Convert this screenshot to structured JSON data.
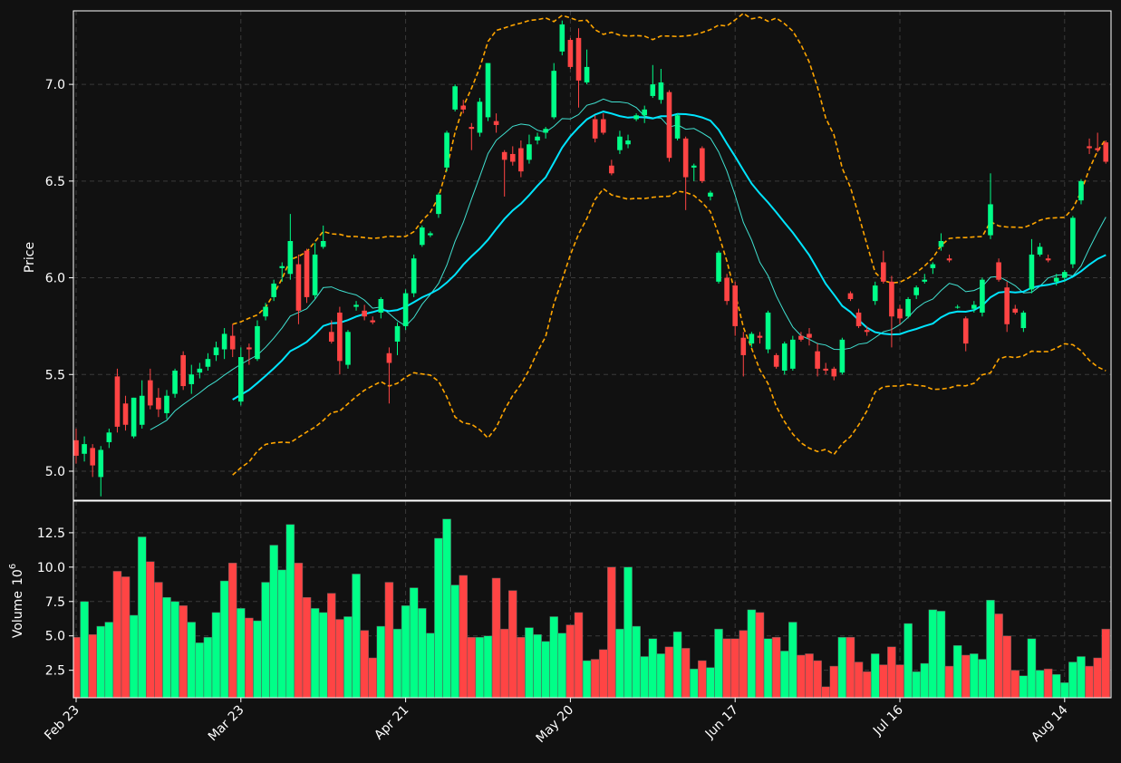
{
  "colors": {
    "background": "#111111",
    "up": "#00ff88",
    "down": "#ff4444",
    "ma_fast": "#40e0d0",
    "ma_slow": "#00e5ff",
    "bands": "#ffa500",
    "grid": "#3a3a3a",
    "text": "#ffffff"
  },
  "chart_data": {
    "type": "candlestick",
    "ylabel": "Price",
    "volume_label": "Volume",
    "volume_exponent": "6",
    "grid": true,
    "price_ylim": [
      4.85,
      7.38
    ],
    "volume_ylim": [
      0.5,
      14.8
    ],
    "price_ticks": [
      "5.0",
      "5.5",
      "6.0",
      "6.5",
      "7.0"
    ],
    "volume_ticks": [
      "2.5",
      "5.0",
      "7.5",
      "10.0",
      "12.5"
    ],
    "x_ticks": [
      {
        "index": 0,
        "label": "Feb 23"
      },
      {
        "index": 20,
        "label": "Mar 23"
      },
      {
        "index": 40,
        "label": "Apr 21"
      },
      {
        "index": 60,
        "label": "May 20"
      },
      {
        "index": 80,
        "label": "Jun 17"
      },
      {
        "index": 100,
        "label": "Jul 16"
      },
      {
        "index": 120,
        "label": "Aug 14"
      }
    ],
    "ohlc": [
      [
        5.16,
        5.22,
        5.04,
        5.08
      ],
      [
        5.09,
        5.18,
        5.05,
        5.14
      ],
      [
        5.12,
        5.14,
        4.97,
        5.03
      ],
      [
        4.97,
        5.13,
        4.87,
        5.11
      ],
      [
        5.15,
        5.22,
        5.12,
        5.2
      ],
      [
        5.49,
        5.53,
        5.2,
        5.23
      ],
      [
        5.35,
        5.39,
        5.21,
        5.24
      ],
      [
        5.18,
        5.38,
        5.17,
        5.38
      ],
      [
        5.24,
        5.47,
        5.22,
        5.39
      ],
      [
        5.47,
        5.53,
        5.32,
        5.34
      ],
      [
        5.38,
        5.43,
        5.28,
        5.32
      ],
      [
        5.3,
        5.42,
        5.27,
        5.39
      ],
      [
        5.4,
        5.53,
        5.38,
        5.52
      ],
      [
        5.6,
        5.62,
        5.42,
        5.44
      ],
      [
        5.45,
        5.55,
        5.4,
        5.5
      ],
      [
        5.51,
        5.56,
        5.48,
        5.53
      ],
      [
        5.54,
        5.61,
        5.52,
        5.58
      ],
      [
        5.6,
        5.67,
        5.57,
        5.64
      ],
      [
        5.63,
        5.74,
        5.58,
        5.71
      ],
      [
        5.7,
        5.76,
        5.59,
        5.63
      ],
      [
        5.36,
        5.64,
        5.34,
        5.59
      ],
      [
        5.64,
        5.66,
        5.55,
        5.63
      ],
      [
        5.58,
        5.78,
        5.57,
        5.75
      ],
      [
        5.8,
        5.87,
        5.78,
        5.85
      ],
      [
        5.9,
        5.99,
        5.88,
        5.97
      ],
      [
        6.05,
        6.08,
        5.98,
        6.06
      ],
      [
        6.02,
        6.33,
        5.99,
        6.19
      ],
      [
        6.07,
        6.12,
        5.76,
        5.83
      ],
      [
        6.14,
        6.15,
        5.87,
        5.9
      ],
      [
        5.91,
        6.18,
        5.89,
        6.12
      ],
      [
        6.16,
        6.27,
        6.15,
        6.19
      ],
      [
        5.72,
        5.78,
        5.66,
        5.67
      ],
      [
        5.82,
        5.85,
        5.5,
        5.57
      ],
      [
        5.55,
        5.73,
        5.53,
        5.72
      ],
      [
        5.85,
        5.88,
        5.83,
        5.86
      ],
      [
        5.83,
        5.86,
        5.78,
        5.8
      ],
      [
        5.78,
        5.8,
        5.76,
        5.77
      ],
      [
        5.82,
        5.9,
        5.79,
        5.89
      ],
      [
        5.61,
        5.64,
        5.35,
        5.56
      ],
      [
        5.67,
        5.77,
        5.6,
        5.75
      ],
      [
        5.75,
        5.94,
        5.73,
        5.92
      ],
      [
        5.92,
        6.12,
        5.9,
        6.1
      ],
      [
        6.17,
        6.27,
        6.16,
        6.26
      ],
      [
        6.22,
        6.24,
        6.21,
        6.23
      ],
      [
        6.33,
        6.44,
        6.31,
        6.43
      ],
      [
        6.57,
        6.76,
        6.55,
        6.75
      ],
      [
        6.87,
        7.0,
        6.86,
        6.99
      ],
      [
        6.89,
        6.92,
        6.85,
        6.87
      ],
      [
        6.78,
        6.8,
        6.66,
        6.77
      ],
      [
        6.75,
        6.93,
        6.73,
        6.91
      ],
      [
        6.83,
        7.11,
        6.81,
        7.11
      ],
      [
        6.81,
        6.85,
        6.75,
        6.79
      ],
      [
        6.65,
        6.66,
        6.42,
        6.61
      ],
      [
        6.64,
        6.68,
        6.58,
        6.6
      ],
      [
        6.67,
        6.71,
        6.52,
        6.55
      ],
      [
        6.61,
        6.74,
        6.59,
        6.69
      ],
      [
        6.71,
        6.75,
        6.69,
        6.73
      ],
      [
        6.75,
        6.78,
        6.72,
        6.77
      ],
      [
        6.83,
        7.11,
        6.82,
        7.07
      ],
      [
        7.17,
        7.33,
        7.15,
        7.31
      ],
      [
        7.23,
        7.24,
        7.08,
        7.09
      ],
      [
        7.24,
        7.29,
        6.88,
        7.02
      ],
      [
        7.01,
        7.18,
        7.0,
        7.09
      ],
      [
        6.82,
        6.84,
        6.7,
        6.72
      ],
      [
        6.82,
        6.85,
        6.74,
        6.75
      ],
      [
        6.58,
        6.61,
        6.53,
        6.54
      ],
      [
        6.66,
        6.76,
        6.64,
        6.73
      ],
      [
        6.69,
        6.74,
        6.67,
        6.71
      ],
      [
        6.82,
        6.85,
        6.81,
        6.84
      ],
      [
        6.84,
        6.89,
        6.8,
        6.87
      ],
      [
        6.94,
        7.1,
        6.93,
        7.0
      ],
      [
        6.92,
        7.08,
        6.9,
        7.01
      ],
      [
        6.96,
        6.97,
        6.6,
        6.62
      ],
      [
        6.72,
        6.85,
        6.71,
        6.84
      ],
      [
        6.72,
        6.73,
        6.35,
        6.52
      ],
      [
        6.57,
        6.59,
        6.5,
        6.58
      ],
      [
        6.67,
        6.68,
        6.49,
        6.5
      ],
      [
        6.42,
        6.45,
        6.4,
        6.44
      ],
      [
        5.98,
        6.14,
        5.97,
        6.13
      ],
      [
        6.0,
        6.02,
        5.86,
        5.88
      ],
      [
        5.96,
        5.98,
        5.7,
        5.75
      ],
      [
        5.69,
        5.72,
        5.49,
        5.6
      ],
      [
        5.66,
        5.72,
        5.64,
        5.71
      ],
      [
        5.7,
        5.72,
        5.66,
        5.69
      ],
      [
        5.63,
        5.83,
        5.61,
        5.82
      ],
      [
        5.6,
        5.61,
        5.53,
        5.54
      ],
      [
        5.52,
        5.67,
        5.5,
        5.66
      ],
      [
        5.53,
        5.7,
        5.52,
        5.68
      ],
      [
        5.7,
        5.72,
        5.67,
        5.68
      ],
      [
        5.71,
        5.74,
        5.65,
        5.69
      ],
      [
        5.62,
        5.66,
        5.49,
        5.53
      ],
      [
        5.53,
        5.56,
        5.5,
        5.52
      ],
      [
        5.53,
        5.54,
        5.47,
        5.49
      ],
      [
        5.51,
        5.69,
        5.5,
        5.68
      ],
      [
        5.92,
        5.93,
        5.88,
        5.89
      ],
      [
        5.82,
        5.84,
        5.74,
        5.75
      ],
      [
        5.73,
        5.75,
        5.7,
        5.72
      ],
      [
        5.88,
        5.98,
        5.86,
        5.96
      ],
      [
        6.08,
        6.14,
        5.97,
        5.98
      ],
      [
        5.98,
        6.01,
        5.64,
        5.8
      ],
      [
        5.84,
        5.86,
        5.76,
        5.79
      ],
      [
        5.8,
        5.9,
        5.79,
        5.89
      ],
      [
        5.91,
        5.96,
        5.89,
        5.95
      ],
      [
        5.98,
        6.02,
        5.97,
        5.99
      ],
      [
        6.05,
        6.08,
        6.02,
        6.07
      ],
      [
        6.16,
        6.23,
        6.14,
        6.19
      ],
      [
        6.1,
        6.12,
        6.08,
        6.09
      ],
      [
        5.85,
        5.86,
        5.84,
        5.85
      ],
      [
        5.79,
        5.8,
        5.62,
        5.66
      ],
      [
        5.84,
        5.88,
        5.82,
        5.86
      ],
      [
        5.82,
        6.0,
        5.8,
        5.99
      ],
      [
        6.22,
        6.54,
        6.2,
        6.38
      ],
      [
        6.08,
        6.1,
        5.98,
        5.99
      ],
      [
        5.95,
        5.98,
        5.72,
        5.76
      ],
      [
        5.84,
        5.86,
        5.81,
        5.82
      ],
      [
        5.74,
        5.83,
        5.72,
        5.82
      ],
      [
        5.94,
        6.2,
        5.92,
        6.12
      ],
      [
        6.12,
        6.18,
        6.11,
        6.16
      ],
      [
        6.1,
        6.12,
        6.08,
        6.09
      ],
      [
        5.98,
        6.02,
        5.96,
        6.0
      ],
      [
        6.0,
        6.04,
        5.98,
        6.03
      ],
      [
        6.07,
        6.32,
        6.05,
        6.31
      ],
      [
        6.4,
        6.51,
        6.38,
        6.5
      ],
      [
        6.68,
        6.72,
        6.64,
        6.67
      ],
      [
        6.67,
        6.75,
        6.65,
        6.66
      ],
      [
        6.7,
        6.71,
        6.59,
        6.6
      ]
    ],
    "volume": [
      4.9,
      7.5,
      5.1,
      5.7,
      6.0,
      9.7,
      9.3,
      6.5,
      12.2,
      10.4,
      8.9,
      7.8,
      7.5,
      7.2,
      6.0,
      4.5,
      4.9,
      6.7,
      9.0,
      10.3,
      7.0,
      6.3,
      6.1,
      8.9,
      11.6,
      9.8,
      13.1,
      10.3,
      7.8,
      7.0,
      6.7,
      8.1,
      6.2,
      6.4,
      9.5,
      5.4,
      3.4,
      5.7,
      8.9,
      5.5,
      7.2,
      8.5,
      7.0,
      5.2,
      12.1,
      13.5,
      8.7,
      9.4,
      4.9,
      4.9,
      5.0,
      9.2,
      5.5,
      8.3,
      4.9,
      5.6,
      5.1,
      4.6,
      6.4,
      5.2,
      5.8,
      6.7,
      3.2,
      3.3,
      4.0,
      10.0,
      5.5,
      10.0,
      5.7,
      3.5,
      4.8,
      3.7,
      4.2,
      5.3,
      4.1,
      2.6,
      3.2,
      2.7,
      5.5,
      4.8,
      4.8,
      5.4,
      6.9,
      6.7,
      4.8,
      4.9,
      3.9,
      6.0,
      3.6,
      3.7,
      3.2,
      1.3,
      2.8,
      4.9,
      4.9,
      3.1,
      2.4,
      3.7,
      2.9,
      4.2,
      2.9,
      5.9,
      2.4,
      3.0,
      6.9,
      6.8,
      2.8,
      4.3,
      3.6,
      3.7,
      3.3,
      7.6,
      6.6,
      5.0,
      2.5,
      2.1,
      4.8,
      2.5,
      2.6,
      2.2,
      1.6,
      3.1,
      3.5,
      2.8,
      3.4,
      5.5
    ]
  }
}
